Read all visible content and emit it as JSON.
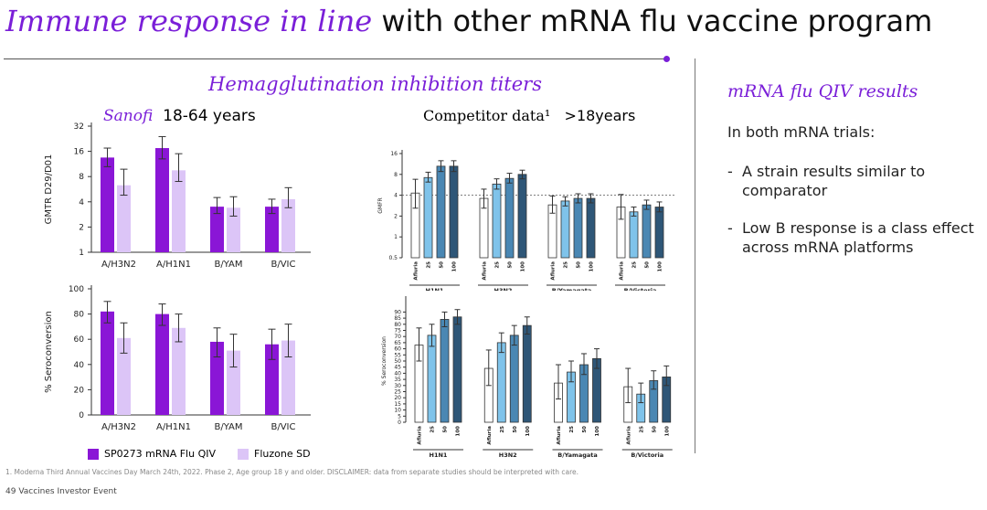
{
  "slide": {
    "title_em": "Immune response in line",
    "title_rest": " with other mRNA flu vaccine program",
    "panel_title": "Hemagglutination inhibition titers",
    "sanofi_brand": "Sanofi",
    "sanofi_age": "18-64 years",
    "competitor_label": "Competitor data¹",
    "competitor_age": ">18years",
    "right_title": "mRNA flu QIV results",
    "right_intro": "In both mRNA trials:",
    "bullets": [
      "A strain results similar to comparator",
      "Low B response is a class effect across mRNA platforms"
    ],
    "legend": [
      "SP0273 mRNA Flu QIV",
      "Fluzone SD"
    ],
    "footnote": "1. Moderna Third Annual Vaccines Day March 24th, 2022. Phase 2, Age group 18 y and older. DISCLAIMER: data from separate studies should be interpreted with care.",
    "footer": "49  Vaccines Investor Event"
  },
  "colors": {
    "accent": "#7a1fd8",
    "sp0273": "#8a16d6",
    "fluzone": "#dcc5f7",
    "afluria": "#ffffff",
    "dose25": "#7fc3ea",
    "dose50": "#4a87b3",
    "dose100": "#2e5677"
  },
  "chart_data": [
    {
      "id": "sanofi-gmtr",
      "type": "bar",
      "ylabel": "GMTR D29/D01",
      "yscale": "log2",
      "ylim": [
        1,
        32
      ],
      "yticks": [
        1,
        2,
        4,
        8,
        16,
        32
      ],
      "categories": [
        "A/H3N2",
        "A/H1N1",
        "B/YAM",
        "B/VIC"
      ],
      "series": [
        {
          "name": "SP0273 mRNA Flu QIV",
          "values": [
            13.5,
            17.5,
            3.5,
            3.5
          ],
          "err_low": [
            10.5,
            13,
            2.9,
            2.9
          ],
          "err_high": [
            17.5,
            24,
            4.5,
            4.3
          ]
        },
        {
          "name": "Fluzone SD",
          "values": [
            6.3,
            9.5,
            3.4,
            4.3
          ],
          "err_low": [
            4.8,
            7,
            2.7,
            3.4
          ],
          "err_high": [
            9.8,
            15,
            4.6,
            5.9
          ]
        }
      ]
    },
    {
      "id": "sanofi-seroconversion",
      "type": "bar",
      "ylabel": "% Seroconversion",
      "ylim": [
        0,
        100
      ],
      "yticks": [
        0,
        20,
        40,
        60,
        80,
        100
      ],
      "categories": [
        "A/H3N2",
        "A/H1N1",
        "B/YAM",
        "B/VIC"
      ],
      "series": [
        {
          "name": "SP0273 mRNA Flu QIV",
          "values": [
            82,
            80,
            58,
            56
          ],
          "err_low": [
            73,
            71,
            46,
            44
          ],
          "err_high": [
            90,
            88,
            69,
            68
          ]
        },
        {
          "name": "Fluzone SD",
          "values": [
            61,
            69,
            51,
            59
          ],
          "err_low": [
            49,
            58,
            38,
            46
          ],
          "err_high": [
            73,
            80,
            64,
            72
          ]
        }
      ]
    },
    {
      "id": "competitor-gmfr",
      "type": "bar",
      "ylabel": "GMFR",
      "yscale": "log2",
      "ylim": [
        0.5,
        16
      ],
      "yticks": [
        0.5,
        1,
        2,
        4,
        8,
        16
      ],
      "reference_line": 4,
      "dose_labels": [
        "Afluria",
        "25",
        "50",
        "100"
      ],
      "groups": [
        {
          "name": "H1N1",
          "values": [
            4.3,
            7.2,
            10.5,
            10.5
          ],
          "err_low": [
            2.6,
            6.2,
            8.8,
            8.8
          ],
          "err_high": [
            6.8,
            8.6,
            12.6,
            12.6
          ]
        },
        {
          "name": "H3N2",
          "values": [
            3.6,
            5.8,
            7.0,
            8.0
          ],
          "err_low": [
            2.6,
            4.9,
            6.0,
            6.9
          ],
          "err_high": [
            4.9,
            6.9,
            8.3,
            9.2
          ]
        },
        {
          "name": "B/Yamagata",
          "values": [
            2.9,
            3.3,
            3.6,
            3.6
          ],
          "err_low": [
            2.2,
            2.8,
            3.1,
            3.1
          ],
          "err_high": [
            3.9,
            3.8,
            4.2,
            4.2
          ]
        },
        {
          "name": "B/Victoria",
          "values": [
            2.7,
            2.3,
            2.9,
            2.7
          ],
          "err_low": [
            1.8,
            2.0,
            2.5,
            2.3
          ],
          "err_high": [
            4.1,
            2.7,
            3.4,
            3.2
          ]
        }
      ]
    },
    {
      "id": "competitor-seroconversion",
      "type": "bar",
      "ylabel": "% Seroconversion",
      "ylim": [
        0,
        100
      ],
      "yticks": [
        0,
        5,
        10,
        15,
        20,
        25,
        30,
        35,
        40,
        45,
        50,
        55,
        60,
        65,
        70,
        75,
        80,
        85,
        90
      ],
      "dose_labels": [
        "Afluria",
        "25",
        "50",
        "100"
      ],
      "groups": [
        {
          "name": "H1N1",
          "values": [
            63,
            71,
            84,
            86
          ],
          "err_low": [
            50,
            62,
            78,
            80
          ],
          "err_high": [
            77,
            80,
            90,
            92
          ]
        },
        {
          "name": "H3N2",
          "values": [
            44,
            65,
            71,
            79
          ],
          "err_low": [
            30,
            57,
            63,
            72
          ],
          "err_high": [
            59,
            73,
            79,
            86
          ]
        },
        {
          "name": "B/Yamagata",
          "values": [
            32,
            41,
            47,
            52
          ],
          "err_low": [
            19,
            33,
            39,
            44
          ],
          "err_high": [
            47,
            50,
            56,
            60
          ]
        },
        {
          "name": "B/Victoria",
          "values": [
            29,
            23,
            34,
            37
          ],
          "err_low": [
            16,
            16,
            27,
            30
          ],
          "err_high": [
            44,
            32,
            42,
            46
          ]
        }
      ]
    }
  ]
}
